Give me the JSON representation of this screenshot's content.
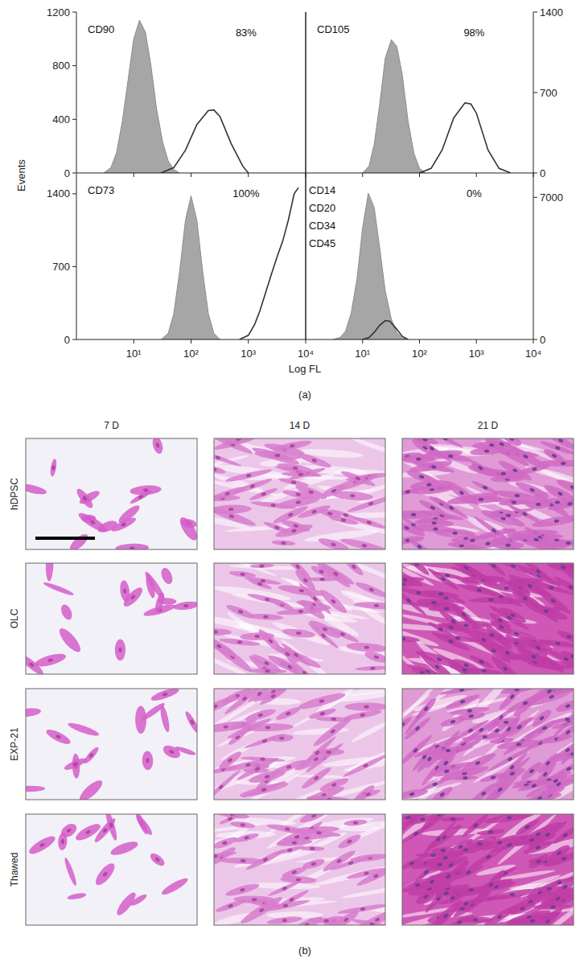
{
  "figure": {
    "y_label": "Events",
    "x_label": "Log FL",
    "panel_label": "(a)"
  },
  "chart_data": [
    {
      "type": "line",
      "title": "CD90",
      "annotations": [
        "83%"
      ],
      "log": "x",
      "xlim": [
        1,
        10000
      ],
      "xticks": [
        10,
        100,
        1000,
        10000
      ],
      "ylim": [
        0,
        1200
      ],
      "yticks": [
        0,
        400,
        800,
        1200
      ],
      "tick_labels": "y",
      "series": [
        {
          "type": "area",
          "color": "#a6a6a6",
          "x": [
            3,
            4,
            5,
            6.3,
            8,
            10,
            12.6,
            16,
            20,
            25,
            32,
            40,
            50,
            63
          ],
          "values": [
            0,
            40,
            150,
            380,
            700,
            1000,
            1140,
            1050,
            800,
            480,
            230,
            90,
            25,
            0
          ]
        },
        {
          "type": "line",
          "color": "#333333",
          "x": [
            30,
            50,
            80,
            126,
            200,
            250,
            320,
            500,
            800,
            1000
          ],
          "values": [
            0,
            40,
            170,
            360,
            465,
            470,
            420,
            220,
            50,
            0
          ]
        }
      ]
    },
    {
      "type": "line",
      "title": "CD105",
      "annotations": [
        "98%"
      ],
      "log": "x",
      "xlim": [
        1,
        10000
      ],
      "xticks": [
        10,
        100,
        1000,
        10000
      ],
      "ylim": [
        0,
        1400
      ],
      "yticks": [
        0,
        700,
        1400
      ],
      "tick_labels": "y",
      "series": [
        {
          "type": "area",
          "color": "#a6a6a6",
          "x": [
            10,
            13,
            16,
            20,
            25,
            32,
            40,
            50,
            63,
            80,
            100,
            126
          ],
          "values": [
            0,
            60,
            250,
            600,
            1000,
            1160,
            1100,
            850,
            450,
            170,
            40,
            0
          ]
        },
        {
          "type": "line",
          "color": "#333333",
          "x": [
            100,
            160,
            250,
            400,
            630,
            800,
            1000,
            1600,
            2500,
            4000
          ],
          "values": [
            0,
            40,
            200,
            480,
            610,
            600,
            520,
            200,
            40,
            0
          ]
        }
      ]
    },
    {
      "type": "line",
      "title": "CD73",
      "annotations": [
        "100%"
      ],
      "log": "x",
      "xlim": [
        1,
        10000
      ],
      "xticks": [
        {
          "value": 10,
          "label": "10¹"
        },
        {
          "value": 100,
          "label": "10²"
        },
        {
          "value": 1000,
          "label": "10³"
        },
        {
          "value": 10000,
          "label": "10⁴"
        }
      ],
      "ylim": [
        0,
        1600
      ],
      "yticks": [
        0,
        700,
        1400
      ],
      "series": [
        {
          "type": "area",
          "color": "#a6a6a6",
          "x": [
            30,
            40,
            50,
            63,
            80,
            100,
            126,
            160,
            200,
            250,
            320
          ],
          "values": [
            0,
            60,
            250,
            650,
            1150,
            1380,
            1150,
            650,
            250,
            60,
            0
          ]
        },
        {
          "type": "line",
          "color": "#333333",
          "x": [
            700,
            1000,
            1300,
            1600,
            2000,
            2500,
            3200,
            4000,
            5000,
            6300,
            7500
          ],
          "values": [
            0,
            40,
            150,
            280,
            450,
            620,
            800,
            950,
            1150,
            1400,
            1460
          ]
        }
      ]
    },
    {
      "type": "line",
      "title": [
        "CD14",
        "CD20",
        "CD34",
        "CD45"
      ],
      "annotations": [
        "0%"
      ],
      "log": "x",
      "xlim": [
        1,
        10000
      ],
      "xticks": [
        {
          "value": 10,
          "label": "10¹"
        },
        {
          "value": 100,
          "label": "10²"
        },
        {
          "value": 1000,
          "label": "10³"
        },
        {
          "value": 10000,
          "label": "10⁴"
        }
      ],
      "ylim": [
        0,
        8200
      ],
      "yticks": [
        0,
        7000
      ],
      "series": [
        {
          "type": "area",
          "color": "#a6a6a6",
          "x": [
            3,
            4,
            5,
            6.3,
            8,
            10,
            12.6,
            16,
            20,
            25,
            32,
            40,
            50,
            63
          ],
          "values": [
            0,
            100,
            400,
            1300,
            3000,
            5500,
            7200,
            6500,
            4500,
            2400,
            1000,
            350,
            80,
            0
          ]
        },
        {
          "type": "line",
          "color": "#333333",
          "x": [
            10,
            13,
            16,
            20,
            25,
            30,
            40,
            50,
            63
          ],
          "values": [
            0,
            100,
            350,
            700,
            930,
            900,
            500,
            150,
            0
          ]
        }
      ]
    }
  ],
  "panel_b": {
    "panel_label": "(b)",
    "columns": [
      "7 D",
      "14 D",
      "21 D"
    ],
    "rows": [
      "hDPSC",
      "OLC",
      "EXP-21",
      "Thawed"
    ]
  }
}
